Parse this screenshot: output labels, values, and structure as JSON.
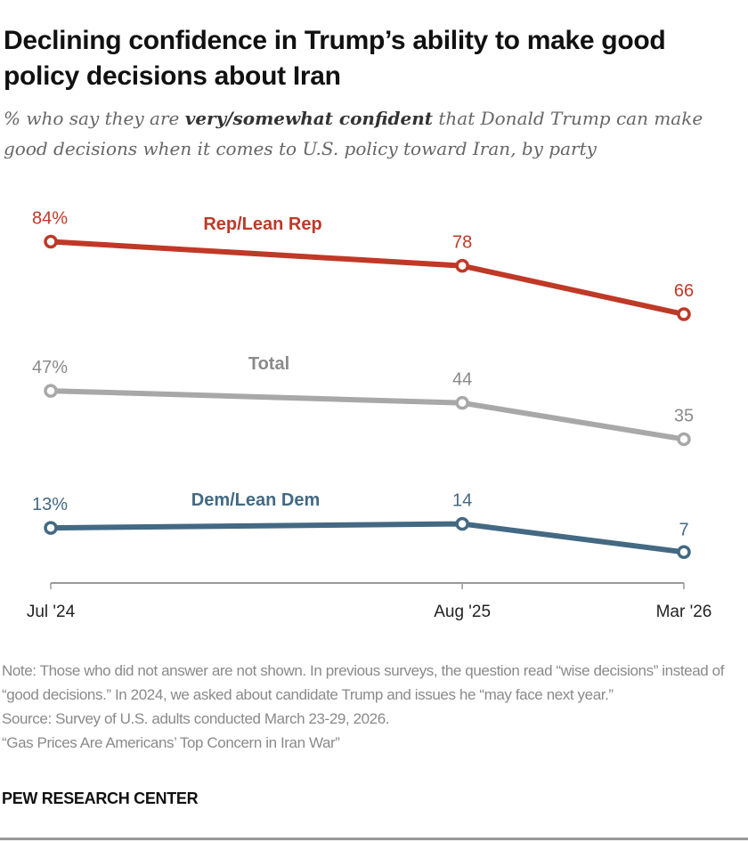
{
  "title": "Declining confidence in Trump’s ability to make good policy decisions about Iran",
  "subtitle": {
    "prefix": "% who say they are ",
    "emphasis": "very/somewhat confident",
    "suffix": " that Donald Trump can make good decisions when it comes to U.S. policy toward Iran, by party"
  },
  "chart_data": {
    "type": "line",
    "x": [
      "Jul '24",
      "Aug '25",
      "Mar '26"
    ],
    "x_dates": [
      "2024-07",
      "2025-08",
      "2026-03"
    ],
    "ylim": [
      0,
      100
    ],
    "grid": false,
    "series": [
      {
        "name": "Rep/Lean Rep",
        "values": [
          84,
          78,
          66
        ],
        "labels": [
          "84%",
          "78",
          "66"
        ],
        "color": "#bf3927"
      },
      {
        "name": "Total",
        "values": [
          47,
          44,
          35
        ],
        "labels": [
          "47%",
          "44",
          "35"
        ],
        "color": "#a8a8a8",
        "label_color": "#8a8a8a"
      },
      {
        "name": "Dem/Lean Dem",
        "values": [
          13,
          14,
          7
        ],
        "labels": [
          "13%",
          "14",
          "7"
        ],
        "color": "#436983"
      }
    ]
  },
  "notes": [
    "Note: Those who did not answer are not shown. In previous surveys, the question read “wise decisions” instead of “good decisions.” In 2024, we asked about candidate Trump and issues he “may face next year.”",
    "Source: Survey of U.S. adults conducted March 23-29, 2026.",
    "“Gas Prices Are Americans’ Top Concern in Iran War”"
  ],
  "brand": "PEW RESEARCH CENTER"
}
